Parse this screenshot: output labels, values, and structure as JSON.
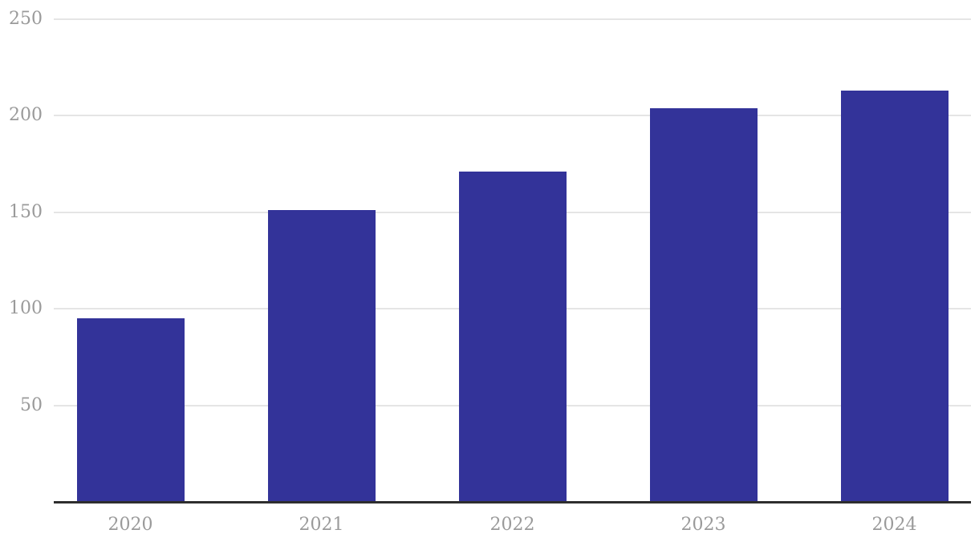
{
  "chart_data": {
    "type": "bar",
    "title": "",
    "xlabel": "",
    "ylabel": "",
    "categories": [
      "2020",
      "2021",
      "2022",
      "2023",
      "2024"
    ],
    "values": [
      95,
      151,
      171,
      204,
      213
    ],
    "ylim": [
      0,
      250
    ],
    "yticks": [
      50,
      100,
      150,
      200,
      250
    ],
    "grid": true,
    "legend": false,
    "colors": {
      "bar": "#333399",
      "gridline": "#e5e5e5",
      "axis_line": "#2e2e2e",
      "tick_label": "#9a9a9a",
      "background": "#ffffff"
    }
  }
}
